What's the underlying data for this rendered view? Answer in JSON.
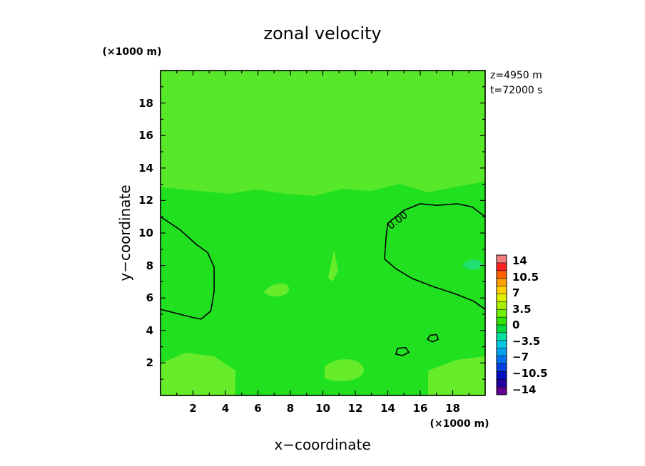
{
  "chart_data": {
    "type": "heatmap",
    "title": "zonal velocity",
    "xlabel": "x−coordinate",
    "ylabel": "y−coordinate",
    "x_unit": "(×1000 m)",
    "y_unit": "(×1000 m)",
    "xlim": [
      0,
      20
    ],
    "ylim": [
      0,
      20
    ],
    "x_ticks": [
      "2",
      "4",
      "6",
      "8",
      "10",
      "12",
      "14",
      "16",
      "18"
    ],
    "y_ticks": [
      "2",
      "4",
      "6",
      "8",
      "10",
      "12",
      "14",
      "16",
      "18"
    ],
    "info": [
      "z=4950  m",
      "t=72000  s"
    ],
    "colorbar": {
      "labels": [
        "14",
        "10.5",
        "7",
        "3.5",
        "0",
        "−3.5",
        "−7",
        "−10.5",
        "−14"
      ],
      "colors_top_to_bottom": [
        "#f08080",
        "#ff2020",
        "#ff6000",
        "#ffa000",
        "#ffd000",
        "#e0f000",
        "#a8f000",
        "#70f000",
        "#30e000",
        "#00d840",
        "#00e0a0",
        "#00c8e0",
        "#00a0f0",
        "#0070f0",
        "#0040e0",
        "#0010c0",
        "#2000a0",
        "#600090"
      ]
    },
    "contour_label": "0.00",
    "contours": [
      {
        "level": 0,
        "points": [
          [
            0,
            11
          ],
          [
            1.2,
            10.2
          ],
          [
            2.2,
            9.3
          ],
          [
            2.9,
            8.8
          ],
          [
            3.3,
            7.9
          ],
          [
            3.3,
            6.4
          ],
          [
            3.1,
            5.2
          ],
          [
            2.5,
            4.7
          ],
          [
            2.0,
            4.8
          ],
          [
            0,
            5.3
          ]
        ]
      },
      {
        "level": 0,
        "points": [
          [
            20,
            11
          ],
          [
            19.2,
            11.6
          ],
          [
            18.3,
            11.8
          ],
          [
            17.0,
            11.7
          ],
          [
            16.0,
            11.8
          ],
          [
            15.0,
            11.4
          ],
          [
            14.0,
            10.6
          ],
          [
            13.9,
            9.8
          ],
          [
            13.8,
            8.4
          ],
          [
            14.5,
            7.8
          ],
          [
            15.5,
            7.2
          ],
          [
            16.8,
            6.7
          ],
          [
            18.3,
            6.2
          ],
          [
            19.3,
            5.8
          ],
          [
            20,
            5.3
          ]
        ]
      },
      {
        "level": 0,
        "points": [
          [
            14.6,
            2.9
          ],
          [
            15.1,
            2.95
          ],
          [
            15.3,
            2.65
          ],
          [
            14.9,
            2.45
          ],
          [
            14.5,
            2.55
          ],
          [
            14.6,
            2.9
          ]
        ]
      },
      {
        "level": 0,
        "points": [
          [
            16.6,
            3.7
          ],
          [
            17.0,
            3.75
          ],
          [
            17.1,
            3.45
          ],
          [
            16.75,
            3.3
          ],
          [
            16.45,
            3.45
          ],
          [
            16.6,
            3.7
          ]
        ]
      }
    ],
    "fields": {
      "background": "#20e020",
      "upper_region": "#58e82a",
      "light_patches": "#66ec2a",
      "bluish_spot": "#20e070"
    }
  }
}
